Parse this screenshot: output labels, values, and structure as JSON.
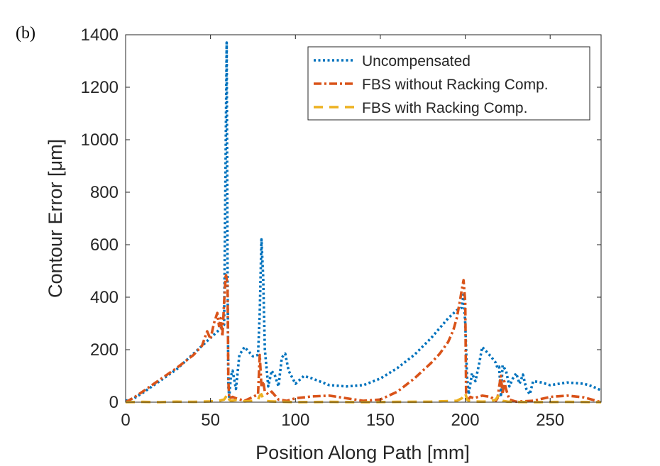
{
  "panel_label": "(b)",
  "chart_data": {
    "type": "line",
    "xlabel": "Position Along Path [mm]",
    "ylabel": "Contour Error [μm]",
    "xlim": [
      0,
      280
    ],
    "ylim": [
      0,
      1400
    ],
    "xticks": [
      0,
      50,
      100,
      150,
      200,
      250
    ],
    "yticks": [
      0,
      200,
      400,
      600,
      800,
      1000,
      1200,
      1400
    ],
    "grid": false,
    "legend_position": "top-right",
    "series": [
      {
        "name": "Uncompensated",
        "color": "#0072BD",
        "style": "dotted",
        "x": [
          0,
          5,
          10,
          20,
          30,
          40,
          50,
          55,
          58,
          59.5,
          60,
          60.5,
          61,
          62,
          63,
          65,
          67,
          70,
          75,
          78,
          79,
          80,
          81,
          82,
          84,
          86,
          88,
          90,
          92,
          94,
          96,
          100,
          105,
          110,
          120,
          130,
          140,
          150,
          160,
          170,
          180,
          190,
          195,
          198,
          199,
          200,
          201,
          202,
          204,
          206,
          208,
          210,
          215,
          218,
          219,
          220,
          221,
          222,
          224,
          226,
          228,
          230,
          232,
          234,
          236,
          238,
          240,
          245,
          250,
          260,
          270,
          275,
          280
        ],
        "y": [
          5,
          15,
          35,
          80,
          125,
          185,
          245,
          275,
          295,
          1370,
          500,
          60,
          20,
          100,
          120,
          50,
          180,
          210,
          175,
          180,
          340,
          620,
          480,
          200,
          60,
          120,
          100,
          60,
          170,
          185,
          120,
          70,
          100,
          90,
          65,
          60,
          65,
          90,
          130,
          180,
          245,
          320,
          350,
          360,
          410,
          300,
          100,
          30,
          110,
          80,
          140,
          210,
          175,
          150,
          130,
          135,
          20,
          140,
          120,
          60,
          90,
          110,
          70,
          105,
          50,
          30,
          80,
          75,
          65,
          75,
          70,
          60,
          45
        ]
      },
      {
        "name": "FBS without Racking Comp.",
        "color": "#D95319",
        "style": "dashdot",
        "x": [
          0,
          5,
          10,
          20,
          30,
          40,
          45,
          48,
          50,
          52,
          54,
          55,
          56,
          57,
          58,
          59,
          60,
          60.5,
          61,
          63,
          65,
          70,
          75,
          78,
          79,
          80,
          81,
          82,
          84,
          86,
          90,
          95,
          100,
          110,
          120,
          130,
          140,
          150,
          160,
          170,
          180,
          185,
          190,
          193,
          195,
          197,
          198,
          199,
          200,
          200.5,
          201,
          203,
          205,
          210,
          215,
          218,
          219,
          220,
          221,
          222,
          223,
          224,
          226,
          230,
          240,
          250,
          260,
          270,
          280
        ],
        "y": [
          0,
          18,
          40,
          85,
          130,
          180,
          215,
          270,
          240,
          300,
          340,
          290,
          320,
          250,
          380,
          490,
          450,
          80,
          15,
          20,
          15,
          5,
          20,
          30,
          180,
          60,
          80,
          40,
          30,
          40,
          10,
          5,
          15,
          22,
          25,
          15,
          5,
          10,
          40,
          90,
          150,
          185,
          230,
          275,
          320,
          390,
          430,
          465,
          380,
          30,
          5,
          20,
          15,
          25,
          20,
          5,
          15,
          60,
          100,
          30,
          80,
          50,
          10,
          2,
          5,
          20,
          25,
          18,
          0
        ]
      },
      {
        "name": "FBS with Racking Comp.",
        "color": "#EDB120",
        "style": "dashed",
        "x": [
          0,
          10,
          20,
          30,
          40,
          50,
          55,
          58,
          59,
          60,
          61,
          62,
          65,
          70,
          75,
          78,
          79,
          80,
          81,
          82,
          85,
          90,
          100,
          120,
          140,
          160,
          180,
          195,
          198,
          199,
          200,
          201,
          202,
          205,
          210,
          215,
          218,
          219,
          220,
          221,
          222,
          225,
          230,
          240,
          260,
          280
        ],
        "y": [
          0,
          1,
          0,
          2,
          1,
          3,
          5,
          10,
          20,
          30,
          10,
          5,
          8,
          3,
          5,
          10,
          25,
          30,
          15,
          5,
          3,
          2,
          0,
          1,
          0,
          1,
          2,
          5,
          15,
          25,
          35,
          10,
          5,
          3,
          2,
          3,
          10,
          20,
          25,
          10,
          5,
          2,
          1,
          0,
          1,
          0
        ]
      }
    ]
  }
}
